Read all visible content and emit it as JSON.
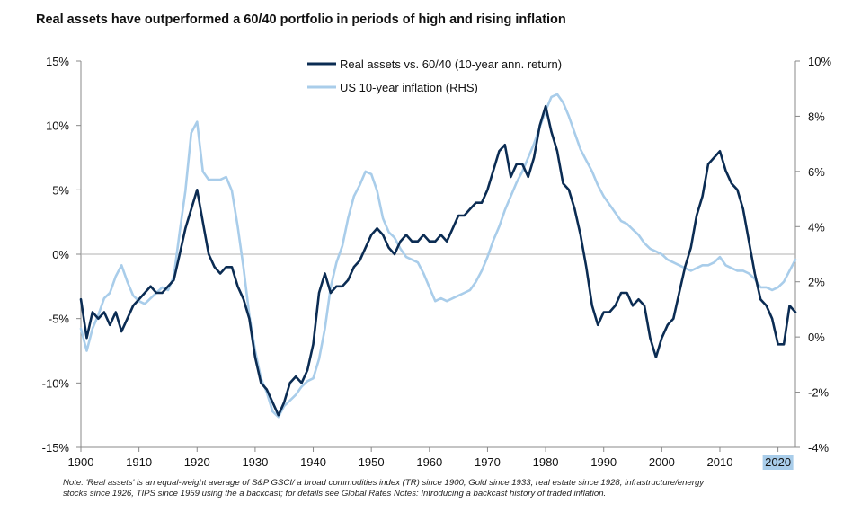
{
  "title": "Real assets have outperformed a 60/40 portfolio in periods of high and rising inflation",
  "note_lines": [
    "Note: 'Real assets' is an equal-weight average of S&P GSCI/ a broad commodities index (TR) since 1900, Gold since 1933, real estate since 1928, infrastructure/energy",
    "stocks since 1926, TIPS since 1959 using the a backcast; for details see Global Rates Notes: Introducing a backcast history of traded inflation."
  ],
  "colors": {
    "dark": "#0b2c53",
    "light": "#a9cdea",
    "axis": "#888888",
    "zero": "#b0b0b0",
    "highlight": "#a9cdea"
  },
  "chart_data": {
    "type": "line",
    "title": "Real assets have outperformed a 60/40 portfolio in periods of high and rising inflation",
    "x_range": [
      1900,
      2023
    ],
    "x_ticks": [
      1900,
      1910,
      1920,
      1930,
      1940,
      1950,
      1960,
      1970,
      1980,
      1990,
      2000,
      2010,
      2020
    ],
    "x_tick_labels": [
      "1900",
      "1910",
      "1920",
      "1930",
      "1940",
      "1950",
      "1960",
      "1970",
      "1980",
      "1990",
      "2000",
      "2010",
      "2020"
    ],
    "highlighted_tick": "2020",
    "y_left": {
      "range": [
        -15,
        15
      ],
      "ticks": [
        15,
        10,
        5,
        0,
        -5,
        -10,
        -15
      ],
      "labels": [
        "15%",
        "10%",
        "5%",
        "0%",
        "-5%",
        "-10%",
        "-15%"
      ]
    },
    "y_right": {
      "range": [
        -4,
        10
      ],
      "ticks": [
        10,
        8,
        6,
        4,
        2,
        0,
        -2,
        -4
      ],
      "labels": [
        "10%",
        "8%",
        "6%",
        "4%",
        "2%",
        "0%",
        "-2%",
        "-4%"
      ]
    },
    "legend": [
      "Real assets vs. 60/40 (10-year ann. return)",
      "US 10-year inflation (RHS)"
    ],
    "legend_position": "top-center",
    "series": [
      {
        "name": "Real assets vs. 60/40 (10-year ann. return)",
        "axis": "left",
        "x": [
          1900,
          1901,
          1902,
          1903,
          1904,
          1905,
          1906,
          1907,
          1908,
          1909,
          1910,
          1911,
          1912,
          1913,
          1914,
          1915,
          1916,
          1917,
          1918,
          1919,
          1920,
          1921,
          1922,
          1923,
          1924,
          1925,
          1926,
          1927,
          1928,
          1929,
          1930,
          1931,
          1932,
          1933,
          1934,
          1935,
          1936,
          1937,
          1938,
          1939,
          1940,
          1941,
          1942,
          1943,
          1944,
          1945,
          1946,
          1947,
          1948,
          1949,
          1950,
          1951,
          1952,
          1953,
          1954,
          1955,
          1956,
          1957,
          1958,
          1959,
          1960,
          1961,
          1962,
          1963,
          1964,
          1965,
          1966,
          1967,
          1968,
          1969,
          1970,
          1971,
          1972,
          1973,
          1974,
          1975,
          1976,
          1977,
          1978,
          1979,
          1980,
          1981,
          1982,
          1983,
          1984,
          1985,
          1986,
          1987,
          1988,
          1989,
          1990,
          1991,
          1992,
          1993,
          1994,
          1995,
          1996,
          1997,
          1998,
          1999,
          2000,
          2001,
          2002,
          2003,
          2004,
          2005,
          2006,
          2007,
          2008,
          2009,
          2010,
          2011,
          2012,
          2013,
          2014,
          2015,
          2016,
          2017,
          2018,
          2019,
          2020,
          2021,
          2022,
          2023
        ],
        "values": [
          -3.5,
          -6.5,
          -4.5,
          -5.0,
          -4.5,
          -5.5,
          -4.5,
          -6.0,
          -5.0,
          -4.0,
          -3.5,
          -3.0,
          -2.5,
          -3.0,
          -3.0,
          -2.5,
          -2.0,
          0.0,
          2.0,
          3.5,
          5.0,
          2.5,
          0.0,
          -1.0,
          -1.5,
          -1.0,
          -1.0,
          -2.5,
          -3.5,
          -5.0,
          -8.0,
          -10.0,
          -10.5,
          -11.5,
          -12.5,
          -11.5,
          -10.0,
          -9.5,
          -10.0,
          -9.0,
          -7.0,
          -3.0,
          -1.5,
          -3.0,
          -2.5,
          -2.5,
          -2.0,
          -1.0,
          -0.5,
          0.5,
          1.5,
          2.0,
          1.5,
          0.5,
          0.0,
          1.0,
          1.5,
          1.0,
          1.0,
          1.5,
          1.0,
          1.0,
          1.5,
          1.0,
          2.0,
          3.0,
          3.0,
          3.5,
          4.0,
          4.0,
          5.0,
          6.5,
          8.0,
          8.5,
          6.0,
          7.0,
          7.0,
          6.0,
          7.5,
          10.0,
          11.5,
          9.5,
          8.0,
          5.5,
          5.0,
          3.5,
          1.5,
          -1.0,
          -4.0,
          -5.5,
          -4.5,
          -4.5,
          -4.0,
          -3.0,
          -3.0,
          -4.0,
          -3.5,
          -4.0,
          -6.5,
          -8.0,
          -6.5,
          -5.5,
          -5.0,
          -3.0,
          -1.0,
          0.5,
          3.0,
          4.5,
          7.0,
          7.5,
          8.0,
          6.5,
          5.5,
          5.0,
          3.5,
          1.0,
          -1.5,
          -3.5,
          -4.0,
          -5.0,
          -7.0,
          -7.0,
          -4.0,
          -4.5
        ]
      },
      {
        "name": "US 10-year inflation (RHS)",
        "axis": "right",
        "x": [
          1900,
          1901,
          1902,
          1903,
          1904,
          1905,
          1906,
          1907,
          1908,
          1909,
          1910,
          1911,
          1912,
          1913,
          1914,
          1915,
          1916,
          1917,
          1918,
          1919,
          1920,
          1921,
          1922,
          1923,
          1924,
          1925,
          1926,
          1927,
          1928,
          1929,
          1930,
          1931,
          1932,
          1933,
          1934,
          1935,
          1936,
          1937,
          1938,
          1939,
          1940,
          1941,
          1942,
          1943,
          1944,
          1945,
          1946,
          1947,
          1948,
          1949,
          1950,
          1951,
          1952,
          1953,
          1954,
          1955,
          1956,
          1957,
          1958,
          1959,
          1960,
          1961,
          1962,
          1963,
          1964,
          1965,
          1966,
          1967,
          1968,
          1969,
          1970,
          1971,
          1972,
          1973,
          1974,
          1975,
          1976,
          1977,
          1978,
          1979,
          1980,
          1981,
          1982,
          1983,
          1984,
          1985,
          1986,
          1987,
          1988,
          1989,
          1990,
          1991,
          1992,
          1993,
          1994,
          1995,
          1996,
          1997,
          1998,
          1999,
          2000,
          2001,
          2002,
          2003,
          2004,
          2005,
          2006,
          2007,
          2008,
          2009,
          2010,
          2011,
          2012,
          2013,
          2014,
          2015,
          2016,
          2017,
          2018,
          2019,
          2020,
          2021,
          2022,
          2023
        ],
        "values": [
          0.3,
          -0.5,
          0.3,
          0.8,
          1.4,
          1.6,
          2.2,
          2.6,
          2.0,
          1.5,
          1.3,
          1.2,
          1.4,
          1.6,
          1.8,
          1.7,
          2.2,
          3.8,
          5.3,
          7.4,
          7.8,
          6.0,
          5.7,
          5.7,
          5.7,
          5.8,
          5.3,
          4.0,
          2.5,
          0.8,
          -0.5,
          -1.5,
          -2.0,
          -2.7,
          -2.9,
          -2.5,
          -2.3,
          -2.1,
          -1.8,
          -1.6,
          -1.5,
          -0.8,
          0.3,
          1.8,
          2.7,
          3.3,
          4.3,
          5.1,
          5.5,
          6.0,
          5.9,
          5.3,
          4.3,
          3.8,
          3.6,
          3.2,
          2.9,
          2.8,
          2.7,
          2.3,
          1.8,
          1.3,
          1.4,
          1.3,
          1.4,
          1.5,
          1.6,
          1.7,
          2.0,
          2.4,
          2.9,
          3.5,
          4.0,
          4.6,
          5.1,
          5.6,
          6.0,
          6.5,
          7.0,
          7.6,
          8.2,
          8.7,
          8.8,
          8.5,
          8.0,
          7.4,
          6.8,
          6.4,
          6.0,
          5.5,
          5.1,
          4.8,
          4.5,
          4.2,
          4.1,
          3.9,
          3.7,
          3.4,
          3.2,
          3.1,
          3.0,
          2.8,
          2.7,
          2.6,
          2.5,
          2.4,
          2.5,
          2.6,
          2.6,
          2.7,
          2.9,
          2.6,
          2.5,
          2.4,
          2.4,
          2.3,
          2.1,
          1.8,
          1.8,
          1.7,
          1.8,
          2.0,
          2.4,
          2.8
        ]
      }
    ]
  }
}
